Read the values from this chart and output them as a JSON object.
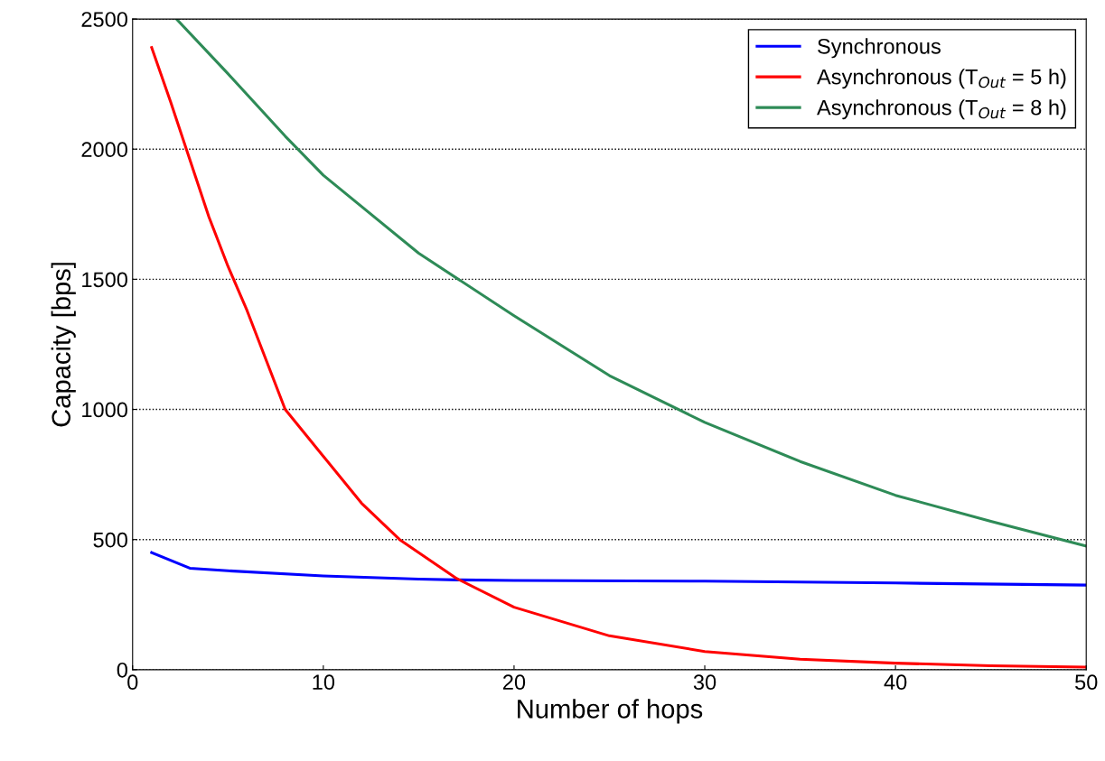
{
  "chart_data": {
    "type": "line",
    "xlabel": "Number of hops",
    "ylabel": "Capacity [bps]",
    "xlim": [
      0,
      50
    ],
    "ylim": [
      0,
      2500
    ],
    "xticks": [
      0,
      10,
      20,
      30,
      40,
      50
    ],
    "yticks": [
      0,
      500,
      1000,
      1500,
      2000,
      2500
    ],
    "grid": "y",
    "legend": "top right",
    "line_style": "solid",
    "marker": "none",
    "series": [
      {
        "name": "Synchronous",
        "color": "#0000ff",
        "x": [
          1,
          3,
          5,
          10,
          15,
          17,
          20,
          30,
          40,
          50
        ],
        "values": [
          450,
          390,
          380,
          360,
          348,
          345,
          343,
          340,
          333,
          325
        ]
      },
      {
        "name": "Asynchronous (T$_{Out}$ = 5 h)",
        "color": "#ff0000",
        "x": [
          1,
          2,
          3,
          4,
          5,
          6,
          8,
          10,
          12,
          14,
          17,
          20,
          25,
          30,
          35,
          40,
          45,
          50
        ],
        "values": [
          2390,
          2180,
          1960,
          1740,
          1550,
          1380,
          1000,
          820,
          640,
          500,
          350,
          240,
          130,
          70,
          40,
          25,
          15,
          10
        ]
      },
      {
        "name": "Asynchronous (T$_{Out}$ = 8 h)",
        "color": "#2e8b57",
        "x": [
          2.3,
          5,
          8,
          10,
          15,
          20,
          25,
          30,
          35,
          40,
          45,
          50
        ],
        "values": [
          2500,
          2290,
          2050,
          1900,
          1600,
          1360,
          1130,
          950,
          800,
          670,
          570,
          475
        ]
      }
    ]
  }
}
